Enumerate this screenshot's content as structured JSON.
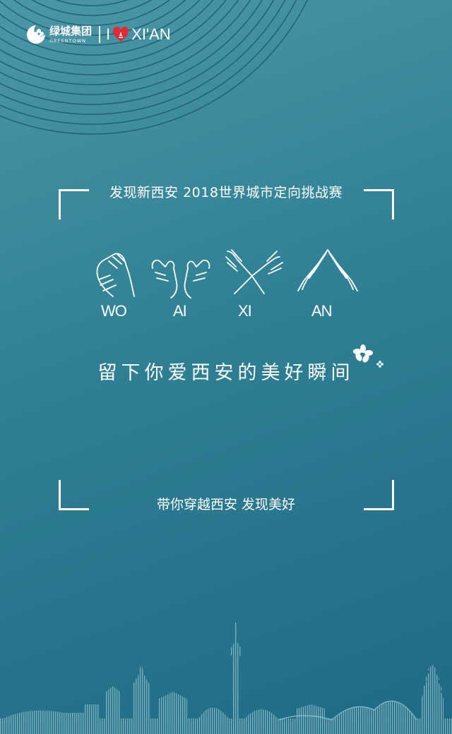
{
  "brand": {
    "company_cn": "绿城集团",
    "company_en": "GREENTOWN",
    "i_letter": "I",
    "city": "XI'AN",
    "heart_color": "#e02a36"
  },
  "event_title": "发现新西安 2018世界城市定向挑战赛",
  "hand_signs": [
    {
      "label": "WO",
      "icon": "clasped-hands-icon"
    },
    {
      "label": "AI",
      "icon": "heart-hands-icon"
    },
    {
      "label": "XI",
      "icon": "crossed-hands-icon"
    },
    {
      "label": "AN",
      "icon": "roof-hands-icon"
    }
  ],
  "slogan": "留下你爱西安的美好瞬间",
  "tagline": "带你穿越西安 发现美好",
  "colors": {
    "bg_top": "#4a97a6",
    "bg_bottom": "#1f6a84",
    "line": "#ffffff"
  }
}
